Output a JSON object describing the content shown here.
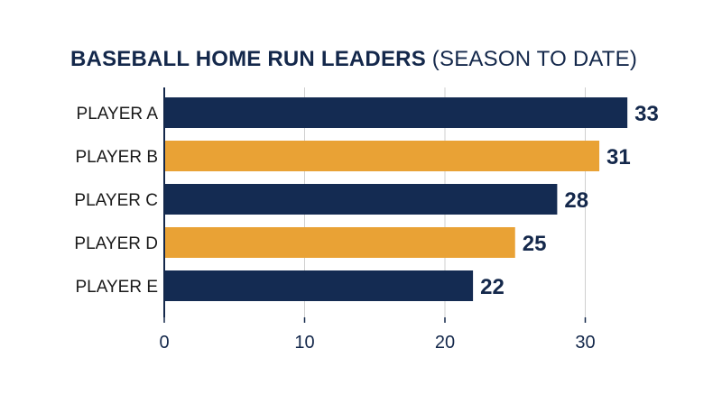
{
  "title": {
    "bold": "BASEBALL HOME RUN LEADERS",
    "light": "(SEASON TO DATE)"
  },
  "chart_data": {
    "type": "bar",
    "orientation": "horizontal",
    "categories": [
      "PLAYER A",
      "PLAYER B",
      "PLAYER C",
      "PLAYER D",
      "PLAYER E"
    ],
    "values": [
      33,
      31,
      28,
      25,
      22
    ],
    "bar_colors": [
      "#142b52",
      "#e9a235",
      "#142b52",
      "#e9a235",
      "#142b52"
    ],
    "xlim": [
      0,
      33
    ],
    "xticks": [
      0,
      10,
      20,
      30
    ],
    "grid": true,
    "xlabel": "",
    "ylabel": ""
  },
  "colors": {
    "navy": "#142b52",
    "gold": "#e9a235",
    "grid": "#cfcfcf",
    "axis": "#14284b"
  }
}
